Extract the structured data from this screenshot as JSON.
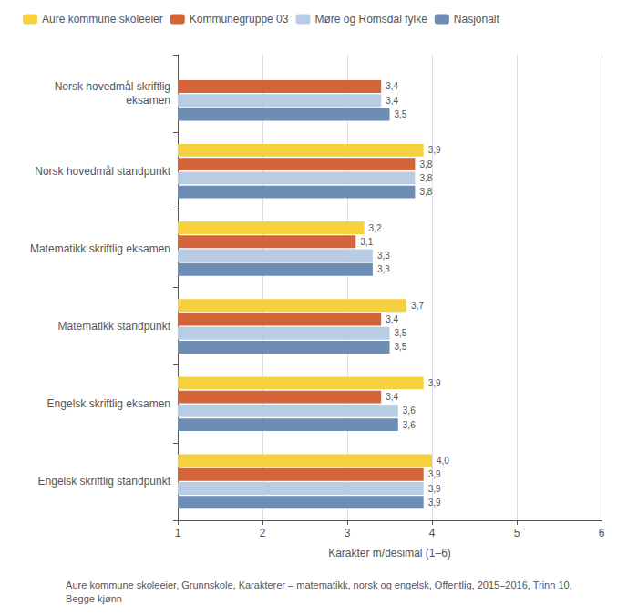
{
  "chart_data": {
    "type": "bar",
    "orientation": "horizontal",
    "categories": [
      "Norsk hovedmål skriftlig\neksamen",
      "Norsk hovedmål standpunkt",
      "Matematikk skriftlig eksamen",
      "Matematikk standpunkt",
      "Engelsk skriftlig eksamen",
      "Engelsk skriftlig standpunkt"
    ],
    "series": [
      {
        "name": "Aure kommune skoleeier",
        "color": "#f5d140",
        "values": [
          null,
          3.9,
          3.2,
          3.7,
          3.9,
          4.0
        ],
        "value_labels": [
          null,
          "3,9",
          "3,2",
          "3,7",
          "3,9",
          "4,0"
        ]
      },
      {
        "name": "Kommunegruppe 03",
        "color": "#d4643a",
        "values": [
          3.4,
          3.8,
          3.1,
          3.4,
          3.4,
          3.9
        ],
        "value_labels": [
          "3,4",
          "3,8",
          "3,1",
          "3,4",
          "3,4",
          "3,9"
        ]
      },
      {
        "name": "Møre og Romsdal fylke",
        "color": "#b8cce4",
        "values": [
          3.4,
          3.8,
          3.3,
          3.5,
          3.6,
          3.9
        ],
        "value_labels": [
          "3,4",
          "3,8",
          "3,3",
          "3,5",
          "3,6",
          "3,9"
        ]
      },
      {
        "name": "Nasjonalt",
        "color": "#6d8db5",
        "values": [
          3.5,
          3.8,
          3.3,
          3.5,
          3.6,
          3.9
        ],
        "value_labels": [
          "3,5",
          "3,8",
          "3,3",
          "3,5",
          "3,6",
          "3,9"
        ]
      }
    ],
    "xlabel": "Karakter m/desimal (1–6)",
    "xlim": [
      1,
      6
    ],
    "xticks": [
      1,
      2,
      3,
      4,
      5,
      6
    ],
    "grid": true,
    "legend": "upper left",
    "data_labels": true,
    "footnote": "Aure kommune skoleeier, Grunnskole, Karakterer – matematikk, norsk og engelsk, Offentlig, 2015–2016, Trinn 10,\nBegge kjønn"
  }
}
